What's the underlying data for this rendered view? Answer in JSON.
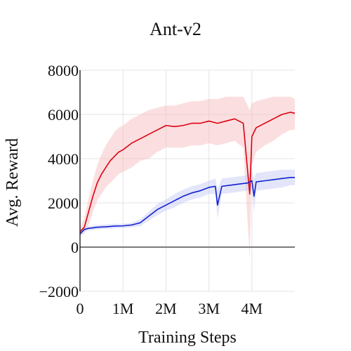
{
  "chart_data": {
    "type": "line",
    "title": "Ant-v2",
    "xlabel": "Training Steps",
    "ylabel": "Avg. Reward",
    "xlim": [
      0,
      5000000
    ],
    "ylim": [
      -2000,
      8000
    ],
    "x_ticks": [
      {
        "value": 0,
        "label": "0"
      },
      {
        "value": 1000000,
        "label": "1M"
      },
      {
        "value": 2000000,
        "label": "2M"
      },
      {
        "value": 3000000,
        "label": "3M"
      },
      {
        "value": 4000000,
        "label": "4M"
      }
    ],
    "y_ticks": [
      {
        "value": -2000,
        "label": "−2000"
      },
      {
        "value": 0,
        "label": "0"
      },
      {
        "value": 2000,
        "label": "2000"
      },
      {
        "value": 4000,
        "label": "4000"
      },
      {
        "value": 6000,
        "label": "6000"
      },
      {
        "value": 8000,
        "label": "8000"
      }
    ],
    "grid": true,
    "zero_line": true,
    "series": [
      {
        "color": "#dd0011",
        "band_color": "#f7b8bb",
        "x": [
          0,
          100000,
          200000,
          300000,
          400000,
          500000,
          600000,
          700000,
          800000,
          900000,
          1000000,
          1200000,
          1400000,
          1600000,
          1800000,
          2000000,
          2200000,
          2400000,
          2600000,
          2800000,
          3000000,
          3200000,
          3400000,
          3600000,
          3800000,
          3950000,
          4000000,
          4100000,
          4300000,
          4500000,
          4700000,
          4900000,
          5000000
        ],
        "y": [
          700,
          900,
          1600,
          2300,
          2900,
          3300,
          3600,
          3900,
          4100,
          4300,
          4400,
          4700,
          4900,
          5100,
          5300,
          5500,
          5450,
          5500,
          5600,
          5600,
          5700,
          5600,
          5700,
          5800,
          5600,
          2400,
          5000,
          5400,
          5600,
          5800,
          6000,
          6100,
          6050
        ],
        "upper": [
          900,
          1300,
          2200,
          3000,
          3700,
          4200,
          4600,
          4900,
          5200,
          5400,
          5500,
          5800,
          6000,
          6200,
          6300,
          6400,
          6400,
          6500,
          6600,
          6600,
          6700,
          6700,
          6800,
          6800,
          6800,
          6200,
          6500,
          6600,
          6700,
          6800,
          6800,
          6800,
          6700
        ],
        "lower": [
          500,
          600,
          1000,
          1600,
          2100,
          2400,
          2700,
          2900,
          3100,
          3300,
          3400,
          3600,
          3900,
          4000,
          4300,
          4500,
          4500,
          4500,
          4600,
          4600,
          4700,
          4600,
          4700,
          4800,
          4500,
          -500,
          3700,
          4300,
          4600,
          4800,
          5100,
          5300,
          5300
        ]
      },
      {
        "color": "#1020d0",
        "band_color": "#c2c6f5",
        "x": [
          0,
          100000,
          200000,
          300000,
          400000,
          600000,
          800000,
          1000000,
          1200000,
          1400000,
          1600000,
          1800000,
          2000000,
          2200000,
          2400000,
          2600000,
          2800000,
          3000000,
          3150000,
          3200000,
          3300000,
          3500000,
          3700000,
          3900000,
          4000000,
          4050000,
          4100000,
          4300000,
          4500000,
          4700000,
          4900000,
          5000000
        ],
        "y": [
          600,
          800,
          850,
          870,
          900,
          920,
          950,
          960,
          1000,
          1100,
          1400,
          1700,
          1900,
          2100,
          2300,
          2450,
          2550,
          2700,
          2750,
          1900,
          2750,
          2800,
          2850,
          2900,
          3000,
          2300,
          2950,
          3000,
          3050,
          3100,
          3150,
          3150
        ],
        "upper": [
          700,
          900,
          950,
          980,
          1000,
          1020,
          1050,
          1060,
          1100,
          1250,
          1600,
          1950,
          2150,
          2400,
          2600,
          2750,
          2850,
          3000,
          3100,
          2600,
          3100,
          3150,
          3200,
          3250,
          3400,
          3100,
          3350,
          3400,
          3450,
          3500,
          3500,
          3500
        ],
        "lower": [
          500,
          700,
          750,
          770,
          800,
          820,
          850,
          860,
          900,
          950,
          1200,
          1450,
          1650,
          1800,
          2000,
          2150,
          2250,
          2400,
          2400,
          1300,
          2400,
          2450,
          2500,
          2550,
          2600,
          1600,
          2550,
          2600,
          2650,
          2700,
          2800,
          2800
        ]
      }
    ]
  }
}
